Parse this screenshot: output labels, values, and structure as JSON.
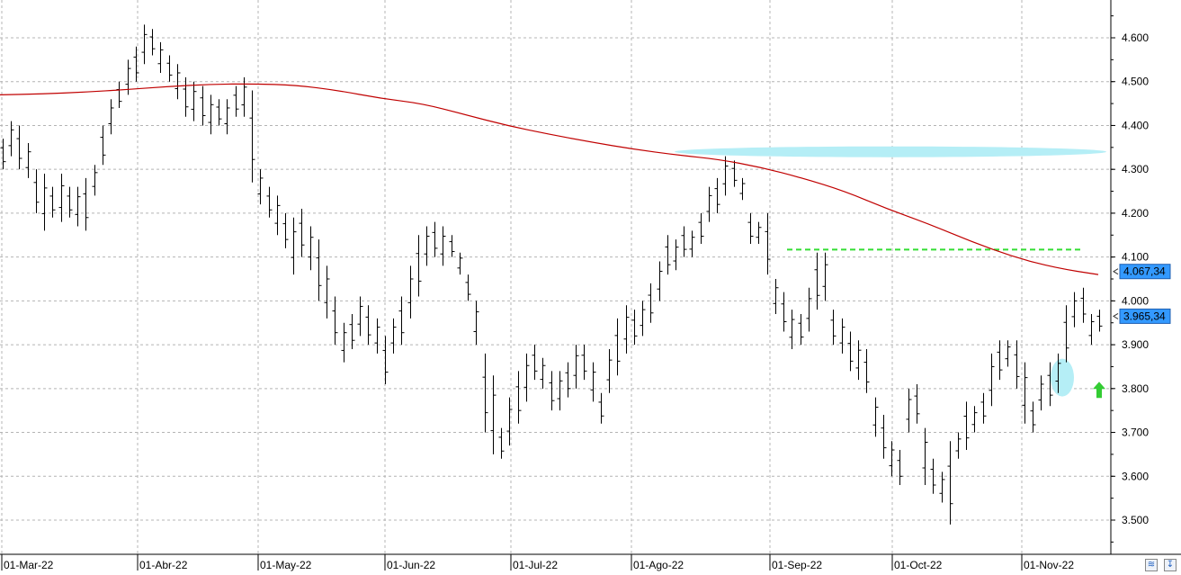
{
  "chart_data": {
    "type": "ohlc",
    "title": "",
    "xlabel": "",
    "ylabel": "",
    "ylim": [
      3420,
      4700
    ],
    "grid": true,
    "y_ticks": [
      "4.600",
      "4.500",
      "4.400",
      "4.300",
      "4.200",
      "4.100",
      "4.000",
      "3.900",
      "3.800",
      "3.700",
      "3.600",
      "3.500"
    ],
    "x_ticks": [
      "01-Mar-22",
      "01-Abr-22",
      "01-May-22",
      "01-Jun-22",
      "01-Jul-22",
      "01-Ago-22",
      "01-Sep-22",
      "01-Oct-22",
      "01-Nov-22"
    ],
    "price_labels": {
      "moving_average": "4.067,34",
      "last": "3.965,34"
    },
    "colors": {
      "bars": "#000000",
      "moving_average": "#c00000",
      "resistance_line": "#33dd33",
      "highlight_zone": "#b5eef6",
      "arrow": "#33cc33",
      "last_badge": "#3399ff"
    },
    "bars_hl": [
      [
        4300,
        4370
      ],
      [
        4330,
        4410
      ],
      [
        4300,
        4400
      ],
      [
        4280,
        4360
      ],
      [
        4200,
        4300
      ],
      [
        4160,
        4290
      ],
      [
        4190,
        4260
      ],
      [
        4180,
        4290
      ],
      [
        4190,
        4260
      ],
      [
        4170,
        4260
      ],
      [
        4160,
        4280
      ],
      [
        4240,
        4310
      ],
      [
        4310,
        4400
      ],
      [
        4380,
        4460
      ],
      [
        4440,
        4500
      ],
      [
        4470,
        4550
      ],
      [
        4500,
        4580
      ],
      [
        4540,
        4630
      ],
      [
        4560,
        4620
      ],
      [
        4520,
        4590
      ],
      [
        4500,
        4560
      ],
      [
        4460,
        4540
      ],
      [
        4420,
        4510
      ],
      [
        4410,
        4500
      ],
      [
        4400,
        4490
      ],
      [
        4380,
        4470
      ],
      [
        4400,
        4460
      ],
      [
        4380,
        4460
      ],
      [
        4420,
        4490
      ],
      [
        4420,
        4510
      ],
      [
        4270,
        4480
      ],
      [
        4220,
        4300
      ],
      [
        4190,
        4260
      ],
      [
        4150,
        4240
      ],
      [
        4120,
        4200
      ],
      [
        4060,
        4190
      ],
      [
        4100,
        4210
      ],
      [
        4070,
        4170
      ],
      [
        4000,
        4140
      ],
      [
        3960,
        4080
      ],
      [
        3900,
        4010
      ],
      [
        3860,
        3950
      ],
      [
        3890,
        3970
      ],
      [
        3920,
        4010
      ],
      [
        3900,
        3990
      ],
      [
        3880,
        3960
      ],
      [
        3810,
        3920
      ],
      [
        3880,
        3960
      ],
      [
        3900,
        4010
      ],
      [
        3960,
        4080
      ],
      [
        4010,
        4150
      ],
      [
        4080,
        4170
      ],
      [
        4100,
        4180
      ],
      [
        4080,
        4170
      ],
      [
        4100,
        4150
      ],
      [
        4060,
        4110
      ],
      [
        4000,
        4060
      ],
      [
        3900,
        4000
      ],
      [
        3700,
        3880
      ],
      [
        3650,
        3830
      ],
      [
        3640,
        3710
      ],
      [
        3670,
        3780
      ],
      [
        3720,
        3840
      ],
      [
        3770,
        3880
      ],
      [
        3820,
        3900
      ],
      [
        3800,
        3870
      ],
      [
        3750,
        3840
      ],
      [
        3750,
        3840
      ],
      [
        3780,
        3860
      ],
      [
        3800,
        3900
      ],
      [
        3820,
        3900
      ],
      [
        3770,
        3860
      ],
      [
        3720,
        3790
      ],
      [
        3790,
        3890
      ],
      [
        3830,
        3960
      ],
      [
        3880,
        3990
      ],
      [
        3900,
        3980
      ],
      [
        3920,
        4000
      ],
      [
        3950,
        4040
      ],
      [
        4000,
        4090
      ],
      [
        4060,
        4150
      ],
      [
        4070,
        4140
      ],
      [
        4100,
        4170
      ],
      [
        4100,
        4160
      ],
      [
        4130,
        4200
      ],
      [
        4180,
        4260
      ],
      [
        4200,
        4280
      ],
      [
        4240,
        4330
      ],
      [
        4260,
        4320
      ],
      [
        4230,
        4280
      ],
      [
        4130,
        4200
      ],
      [
        4130,
        4180
      ],
      [
        4060,
        4200
      ],
      [
        3970,
        4050
      ],
      [
        3930,
        4020
      ],
      [
        3890,
        3980
      ],
      [
        3900,
        3970
      ],
      [
        3930,
        4030
      ],
      [
        3980,
        4110
      ],
      [
        4000,
        4110
      ],
      [
        3900,
        3980
      ],
      [
        3880,
        3960
      ],
      [
        3840,
        3930
      ],
      [
        3820,
        3910
      ],
      [
        3790,
        3890
      ],
      [
        3690,
        3780
      ],
      [
        3640,
        3740
      ],
      [
        3600,
        3680
      ],
      [
        3580,
        3660
      ],
      [
        3700,
        3800
      ],
      [
        3720,
        3810
      ],
      [
        3580,
        3710
      ],
      [
        3560,
        3640
      ],
      [
        3540,
        3610
      ],
      [
        3490,
        3680
      ],
      [
        3640,
        3700
      ],
      [
        3660,
        3770
      ],
      [
        3700,
        3760
      ],
      [
        3720,
        3790
      ],
      [
        3760,
        3880
      ],
      [
        3820,
        3910
      ],
      [
        3850,
        3910
      ],
      [
        3800,
        3910
      ],
      [
        3720,
        3860
      ],
      [
        3700,
        3770
      ],
      [
        3750,
        3830
      ],
      [
        3760,
        3860
      ],
      [
        3790,
        3880
      ],
      [
        3860,
        3990
      ],
      [
        3940,
        4020
      ],
      [
        3950,
        4030
      ],
      [
        3900,
        3970
      ],
      [
        3930,
        3980
      ]
    ],
    "moving_average": [
      4470,
      4472,
      4476,
      4482,
      4489,
      4494,
      4495,
      4492,
      4480,
      4462,
      4450,
      4425,
      4400,
      4380,
      4362,
      4346,
      4333,
      4323,
      4305,
      4280,
      4250,
      4210,
      4175,
      4135,
      4100,
      4075,
      4060
    ],
    "resistance": {
      "x0": 4110,
      "value": 4117
    },
    "highlight_zone": {
      "value": 4340
    },
    "highlight_dot": {
      "value": 3825
    },
    "arrow_up": {
      "value": 3795
    }
  }
}
